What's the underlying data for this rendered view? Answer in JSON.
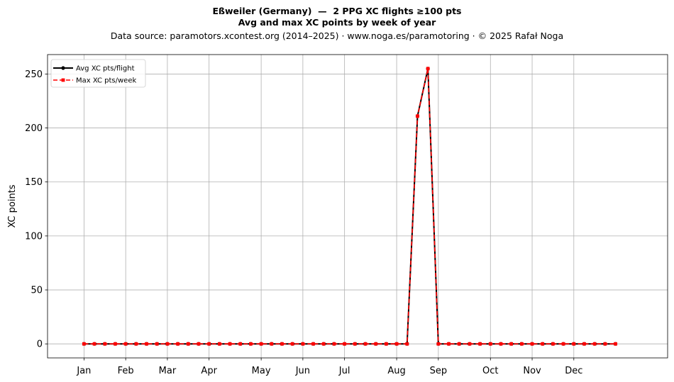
{
  "title_line1": "Eßweiler (Germany)  —  2 PPG XC flights ≥100 pts",
  "title_line2": "Avg and max XC points by week of year",
  "subtitle": "Data source: paramotors.xcontest.org (2014–2025)  ·  www.noga.es/paramotoring  ·  © 2025 Rafał Noga",
  "chart_data": {
    "type": "line",
    "ylabel": "XC points",
    "xlabel": "",
    "ylim": [
      -13,
      268
    ],
    "xlim": [
      -2.5,
      57
    ],
    "yticks": [
      0,
      50,
      100,
      150,
      200,
      250
    ],
    "xticks": [
      {
        "label": "Jan",
        "week": 1
      },
      {
        "label": "Feb",
        "week": 5
      },
      {
        "label": "Mar",
        "week": 9
      },
      {
        "label": "Apr",
        "week": 13
      },
      {
        "label": "May",
        "week": 18
      },
      {
        "label": "Jun",
        "week": 22
      },
      {
        "label": "Jul",
        "week": 26
      },
      {
        "label": "Aug",
        "week": 31
      },
      {
        "label": "Sep",
        "week": 35
      },
      {
        "label": "Oct",
        "week": 40
      },
      {
        "label": "Nov",
        "week": 44
      },
      {
        "label": "Dec",
        "week": 48
      }
    ],
    "grid": true,
    "legend_position": "top-left",
    "x": [
      1,
      2,
      3,
      4,
      5,
      6,
      7,
      8,
      9,
      10,
      11,
      12,
      13,
      14,
      15,
      16,
      17,
      18,
      19,
      20,
      21,
      22,
      23,
      24,
      25,
      26,
      27,
      28,
      29,
      30,
      31,
      32,
      33,
      34,
      35,
      36,
      37,
      38,
      39,
      40,
      41,
      42,
      43,
      44,
      45,
      46,
      47,
      48,
      49,
      50,
      51,
      52
    ],
    "series": [
      {
        "name": "Avg XC pts/flight",
        "color": "#000000",
        "style": "solid",
        "marker": "circle",
        "values": [
          0,
          0,
          0,
          0,
          0,
          0,
          0,
          0,
          0,
          0,
          0,
          0,
          0,
          0,
          0,
          0,
          0,
          0,
          0,
          0,
          0,
          0,
          0,
          0,
          0,
          0,
          0,
          0,
          0,
          0,
          0,
          0,
          211,
          255,
          0,
          0,
          0,
          0,
          0,
          0,
          0,
          0,
          0,
          0,
          0,
          0,
          0,
          0,
          0,
          0,
          0,
          0
        ]
      },
      {
        "name": "Max XC pts/week",
        "color": "#ff0000",
        "style": "dashed",
        "marker": "square",
        "values": [
          0,
          0,
          0,
          0,
          0,
          0,
          0,
          0,
          0,
          0,
          0,
          0,
          0,
          0,
          0,
          0,
          0,
          0,
          0,
          0,
          0,
          0,
          0,
          0,
          0,
          0,
          0,
          0,
          0,
          0,
          0,
          0,
          211,
          255,
          0,
          0,
          0,
          0,
          0,
          0,
          0,
          0,
          0,
          0,
          0,
          0,
          0,
          0,
          0,
          0,
          0,
          0
        ]
      }
    ]
  }
}
